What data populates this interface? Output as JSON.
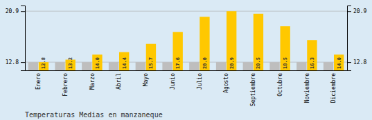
{
  "chart_data": {
    "type": "bar",
    "title": "Temperaturas Medias en manzaneque",
    "categories": [
      "Enero",
      "Febrero",
      "Marzo",
      "Abril",
      "Mayo",
      "Junio",
      "Julio",
      "Agosto",
      "Septiembre",
      "Octubre",
      "Noviembre",
      "Diciembre"
    ],
    "series": [
      {
        "color": "#BEBEBE",
        "values": [
          12.8,
          12.8,
          12.8,
          12.8,
          12.8,
          12.8,
          12.8,
          12.8,
          12.8,
          12.8,
          12.8,
          12.8
        ]
      },
      {
        "color": "#FFC800",
        "values": [
          12.8,
          13.2,
          14.0,
          14.4,
          15.7,
          17.6,
          20.0,
          20.9,
          20.5,
          18.5,
          16.3,
          14.0
        ],
        "data_labels": true,
        "value_labels": [
          "12.8",
          "13.2",
          "14.0",
          "14.4",
          "15.7",
          "17.6",
          "20.0",
          "20.9",
          "20.5",
          "18.5",
          "16.3",
          "14.0"
        ]
      }
    ],
    "ylim": [
      11.5,
      21.8
    ],
    "yticks": [
      12.8,
      20.9
    ],
    "y2lim": [
      11.5,
      21.8
    ],
    "y2ticks": [
      12.8,
      20.9
    ],
    "grid": true
  }
}
